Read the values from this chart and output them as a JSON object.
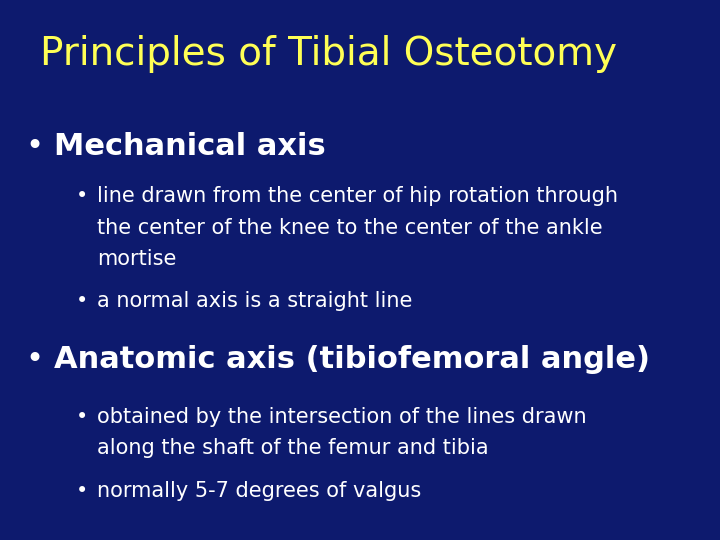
{
  "title": "Principles of Tibial Osteotomy",
  "title_color": "#FFFF55",
  "title_fontsize": 28,
  "title_fontweight": "normal",
  "background_color": "#0d1a6e",
  "bullet1_text": "Mechanical axis",
  "bullet1_color": "#FFFFFF",
  "bullet1_fontsize": 22,
  "sub_bullets_1_line1": "line drawn from the center of hip rotation through",
  "sub_bullets_1_line2": "the center of the knee to the center of the ankle",
  "sub_bullets_1_line3": "mortise",
  "sub_bullets_1b": "a normal axis is a straight line",
  "bullet2_text": "Anatomic axis (tibiofemoral angle)",
  "bullet2_color": "#FFFFFF",
  "bullet2_fontsize": 22,
  "sub_bullets_2_line1": "obtained by the intersection of the lines drawn",
  "sub_bullets_2_line2": "along the shaft of the femur and tibia",
  "sub_bullets_2b": "normally 5-7 degrees of valgus",
  "sub_bullet_color": "#FFFFFF",
  "sub_bullet_fontsize": 15,
  "background_gradient_top": "#0d1a6e",
  "background_gradient_bottom": "#1a2f8a"
}
